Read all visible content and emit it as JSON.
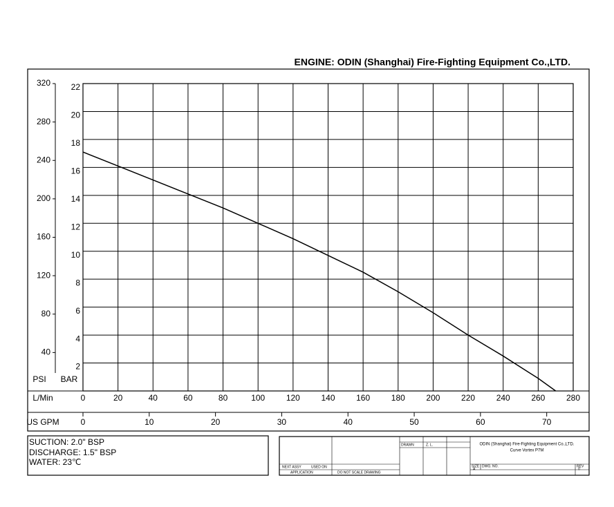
{
  "chart_data": {
    "type": "line",
    "title": "ENGINE: ODIN (Shanghai) Fire-Fighting Equipment Co.,LTD.",
    "x_label": "L/Min",
    "y_label": "BAR",
    "y2_label": "PSI",
    "x2_label": "US GPM",
    "x": [
      0,
      20,
      40,
      60,
      80,
      100,
      120,
      140,
      160,
      180,
      200,
      220,
      240,
      260,
      270
    ],
    "values": [
      17.1,
      16.1,
      15.1,
      14.1,
      13.1,
      12.0,
      10.9,
      9.7,
      8.5,
      7.1,
      5.6,
      4.0,
      2.5,
      0.9,
      0
    ],
    "color": "#000000",
    "xlim": [
      0,
      280
    ],
    "xticks": [
      0,
      20,
      40,
      60,
      80,
      100,
      120,
      140,
      160,
      180,
      200,
      220,
      240,
      260,
      280
    ],
    "ylim": [
      0,
      22
    ],
    "yticks": [
      2,
      4,
      6,
      8,
      10,
      12,
      14,
      16,
      18,
      20,
      22
    ],
    "y2lim": [
      0,
      320
    ],
    "y2ticks": [
      40,
      80,
      120,
      160,
      200,
      240,
      280,
      320
    ],
    "x2lim": [
      0,
      74
    ],
    "x2ticks": [
      0,
      10,
      20,
      30,
      40,
      50,
      60,
      70
    ],
    "grid": true
  },
  "notes": [
    "SUCTION: 2.0\" BSP",
    "DISCHARGE: 1.5\" BSP",
    "WATER: 23℃"
  ],
  "title_block": {
    "company": "ODIN (Shanghai) Fire-Fighting Equipment Co.,LTD.",
    "drawing": "Curve Vortex P7M",
    "application": "APPLICATION",
    "scale_note": "DO NOT SCALE DRAWING",
    "next_assy": "NEXT ASSY",
    "used_on": "USED ON",
    "drawn": "DRAWN",
    "drawn_by": "Z. L.",
    "size": "SIZE",
    "size_value": "A",
    "dwg_no": "DWG. NO.",
    "rev": "REV",
    "rev_value": "0"
  }
}
